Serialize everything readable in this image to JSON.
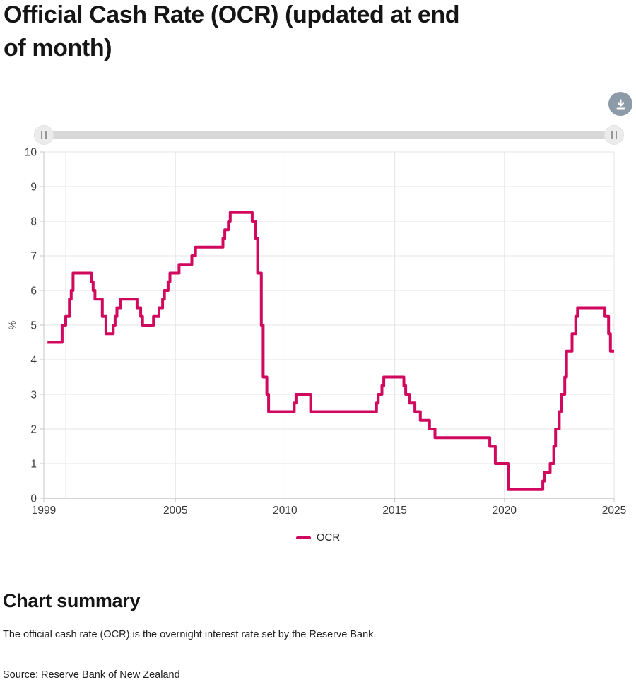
{
  "page": {
    "title": "Official Cash Rate (OCR) (updated at end of month)",
    "summary_heading": "Chart summary",
    "summary_text": "The official cash rate (OCR) is the overnight interest rate set by the Reserve Bank.",
    "source": "Source: Reserve Bank of New Zealand"
  },
  "toolbar": {
    "download_icon": "download-arrow-to-line"
  },
  "slider": {
    "grip_icon": "double-vertical-bars",
    "range_start_pct": 0,
    "range_end_pct": 100
  },
  "colors": {
    "line": "#d0095f",
    "download_button": "#8d9aa7",
    "slider_track": "#d8d8d8",
    "slider_handle": "#ececec",
    "grid": "#e4e4e4",
    "y_axis": "#c6c6c6",
    "x_axis": "#ababab",
    "tick_text": "#3a3a3a"
  },
  "chart_data": {
    "type": "line",
    "line_style": "step-after",
    "title": "Official Cash Rate (OCR) (updated at end of month)",
    "xlabel": "",
    "ylabel": "%",
    "ylim": [
      0,
      10
    ],
    "y_ticks": [
      0,
      1,
      2,
      3,
      4,
      5,
      6,
      7,
      8,
      9,
      10
    ],
    "xlim_years": [
      1999,
      2025
    ],
    "x_tick_labels": [
      "1999",
      "2005",
      "2010",
      "2015",
      "2020",
      "2025"
    ],
    "x_gridline_years": [
      2000,
      2005,
      2010,
      2015,
      2020,
      2025
    ],
    "grid": "on",
    "legend": {
      "position": "bottom-center",
      "label": "OCR"
    },
    "series": [
      {
        "name": "OCR",
        "color": "#d0095f",
        "unit": "%",
        "series_end": "2025-01",
        "step_changes": [
          [
            "1999-03",
            4.5
          ],
          [
            "1999-11",
            5.0
          ],
          [
            "2000-01",
            5.25
          ],
          [
            "2000-03",
            5.75
          ],
          [
            "2000-04",
            6.0
          ],
          [
            "2000-05",
            6.5
          ],
          [
            "2001-03",
            6.25
          ],
          [
            "2001-04",
            6.0
          ],
          [
            "2001-05",
            5.75
          ],
          [
            "2001-09",
            5.25
          ],
          [
            "2001-11",
            4.75
          ],
          [
            "2002-03",
            5.0
          ],
          [
            "2002-04",
            5.25
          ],
          [
            "2002-05",
            5.5
          ],
          [
            "2002-07",
            5.75
          ],
          [
            "2003-04",
            5.5
          ],
          [
            "2003-06",
            5.25
          ],
          [
            "2003-07",
            5.0
          ],
          [
            "2004-01",
            5.25
          ],
          [
            "2004-04",
            5.5
          ],
          [
            "2004-06",
            5.75
          ],
          [
            "2004-07",
            6.0
          ],
          [
            "2004-09",
            6.25
          ],
          [
            "2004-10",
            6.5
          ],
          [
            "2005-03",
            6.75
          ],
          [
            "2005-10",
            7.0
          ],
          [
            "2005-12",
            7.25
          ],
          [
            "2007-03",
            7.5
          ],
          [
            "2007-04",
            7.75
          ],
          [
            "2007-06",
            8.0
          ],
          [
            "2007-07",
            8.25
          ],
          [
            "2008-07",
            8.0
          ],
          [
            "2008-09",
            7.5
          ],
          [
            "2008-10",
            6.5
          ],
          [
            "2008-12",
            5.0
          ],
          [
            "2009-01",
            3.5
          ],
          [
            "2009-03",
            3.0
          ],
          [
            "2009-04",
            2.5
          ],
          [
            "2010-06",
            2.75
          ],
          [
            "2010-07",
            3.0
          ],
          [
            "2011-03",
            2.5
          ],
          [
            "2014-03",
            2.75
          ],
          [
            "2014-04",
            3.0
          ],
          [
            "2014-06",
            3.25
          ],
          [
            "2014-07",
            3.5
          ],
          [
            "2015-06",
            3.25
          ],
          [
            "2015-07",
            3.0
          ],
          [
            "2015-09",
            2.75
          ],
          [
            "2015-12",
            2.5
          ],
          [
            "2016-03",
            2.25
          ],
          [
            "2016-08",
            2.0
          ],
          [
            "2016-11",
            1.75
          ],
          [
            "2019-05",
            1.5
          ],
          [
            "2019-08",
            1.0
          ],
          [
            "2020-03",
            0.25
          ],
          [
            "2021-10",
            0.5
          ],
          [
            "2021-11",
            0.75
          ],
          [
            "2022-02",
            1.0
          ],
          [
            "2022-04",
            1.5
          ],
          [
            "2022-05",
            2.0
          ],
          [
            "2022-07",
            2.5
          ],
          [
            "2022-08",
            3.0
          ],
          [
            "2022-10",
            3.5
          ],
          [
            "2022-11",
            4.25
          ],
          [
            "2023-02",
            4.75
          ],
          [
            "2023-04",
            5.25
          ],
          [
            "2023-05",
            5.5
          ],
          [
            "2024-08",
            5.25
          ],
          [
            "2024-10",
            4.75
          ],
          [
            "2024-11",
            4.25
          ]
        ]
      }
    ]
  }
}
